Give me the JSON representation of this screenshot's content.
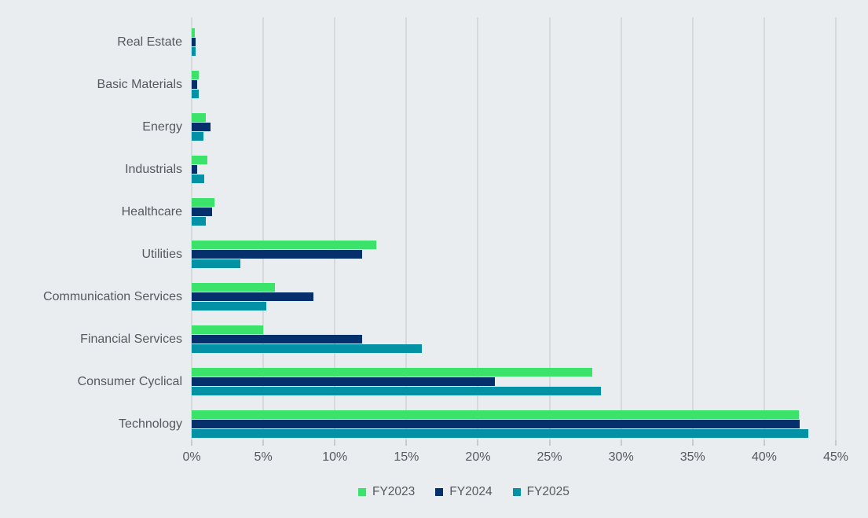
{
  "chart_data": {
    "type": "bar",
    "orientation": "horizontal",
    "title": "",
    "categories": [
      "Real Estate",
      "Basic Materials",
      "Energy",
      "Industrials",
      "Healthcare",
      "Utilities",
      "Communication Services",
      "Financial Services",
      "Consumer Cyclical",
      "Technology"
    ],
    "series": [
      {
        "name": "FY2023",
        "color": "#3ce36b",
        "values": [
          0.2,
          0.5,
          1.0,
          1.1,
          1.6,
          12.9,
          5.8,
          5.0,
          28.0,
          42.4
        ]
      },
      {
        "name": "FY2024",
        "color": "#06306b",
        "values": [
          0.3,
          0.4,
          1.3,
          0.4,
          1.4,
          11.9,
          8.5,
          11.9,
          21.2,
          42.5
        ]
      },
      {
        "name": "FY2025",
        "color": "#0391a5",
        "values": [
          0.3,
          0.5,
          0.8,
          0.9,
          1.0,
          3.4,
          5.2,
          16.1,
          28.6,
          43.1
        ]
      }
    ],
    "xlim": [
      0,
      45
    ],
    "x_ticks": [
      {
        "value": 0,
        "label": "0%"
      },
      {
        "value": 5,
        "label": "5%"
      },
      {
        "value": 10,
        "label": "10%"
      },
      {
        "value": 15,
        "label": "15%"
      },
      {
        "value": 20,
        "label": "20%"
      },
      {
        "value": 25,
        "label": "25%"
      },
      {
        "value": 30,
        "label": "30%"
      },
      {
        "value": 35,
        "label": "35%"
      },
      {
        "value": 40,
        "label": "40%"
      },
      {
        "value": 45,
        "label": "45%"
      }
    ],
    "grid": true,
    "legend_position": "bottom",
    "legend": [
      "FY2023",
      "FY2024",
      "FY2025"
    ]
  },
  "colors": {
    "background": "#eaedf0",
    "gridline": "#d7d9dc",
    "tick": "#c8cacd",
    "text": "#55585e",
    "fy2023": "#3ce36b",
    "fy2024": "#06306b",
    "fy2025": "#0391a5"
  }
}
